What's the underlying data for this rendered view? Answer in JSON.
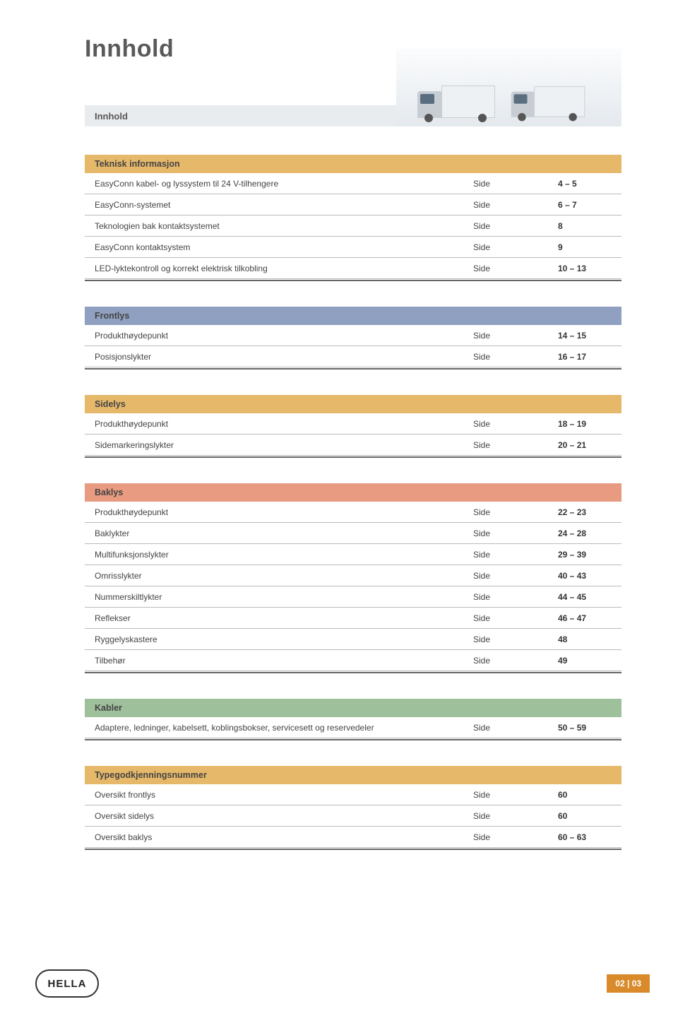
{
  "doc_title": "Innhold",
  "hero_label": "Innhold",
  "side_word": "Side",
  "colors": {
    "teknisk": "#e6b86a",
    "frontlys": "#8fa0c0",
    "sidelys": "#e6b86a",
    "baklys": "#e89b80",
    "kabler": "#9ec19c",
    "type": "#e6b86a",
    "hero_bg": "#e9ecef",
    "footer_badge": "#d98b2b"
  },
  "sections": [
    {
      "key": "teknisk",
      "title": "Teknisk informasjon",
      "rows": [
        {
          "label": "EasyConn kabel- og lyssystem til 24 V-tilhengere",
          "page": "4 – 5"
        },
        {
          "label": "EasyConn-systemet",
          "page": "6 – 7"
        },
        {
          "label": "Teknologien bak kontaktsystemet",
          "page": "8"
        },
        {
          "label": "EasyConn kontaktsystem",
          "page": "9"
        },
        {
          "label": "LED-lyktekontroll og korrekt elektrisk tilkobling",
          "page": "10 – 13"
        }
      ]
    },
    {
      "key": "frontlys",
      "title": "Frontlys",
      "rows": [
        {
          "label": "Produkthøydepunkt",
          "page": "14 – 15"
        },
        {
          "label": "Posisjonslykter",
          "page": "16 – 17"
        }
      ]
    },
    {
      "key": "sidelys",
      "title": "Sidelys",
      "rows": [
        {
          "label": "Produkthøydepunkt",
          "page": "18 – 19"
        },
        {
          "label": "Sidemarkeringslykter",
          "page": "20 – 21"
        }
      ]
    },
    {
      "key": "baklys",
      "title": "Baklys",
      "rows": [
        {
          "label": "Produkthøydepunkt",
          "page": "22 – 23"
        },
        {
          "label": "Baklykter",
          "page": "24 – 28"
        },
        {
          "label": "Multifunksjonslykter",
          "page": "29 – 39"
        },
        {
          "label": "Omrisslykter",
          "page": "40 – 43"
        },
        {
          "label": "Nummerskiltlykter",
          "page": "44 – 45"
        },
        {
          "label": "Reflekser",
          "page": "46 – 47"
        },
        {
          "label": "Ryggelyskastere",
          "page": "48"
        },
        {
          "label": "Tilbehør",
          "page": "49"
        }
      ]
    },
    {
      "key": "kabler",
      "title": "Kabler",
      "rows": [
        {
          "label": "Adaptere, ledninger, kabelsett, koblingsbokser, servicesett og reservedeler",
          "page": "50 – 59"
        }
      ]
    },
    {
      "key": "type",
      "title": "Typegodkjenningsnummer",
      "rows": [
        {
          "label": "Oversikt frontlys",
          "page": "60"
        },
        {
          "label": "Oversikt sidelys",
          "page": "60"
        },
        {
          "label": "Oversikt baklys",
          "page": "60 – 63"
        }
      ]
    }
  ],
  "footer": {
    "logo_text": "HELLA",
    "page_indicator": "02 | 03"
  }
}
